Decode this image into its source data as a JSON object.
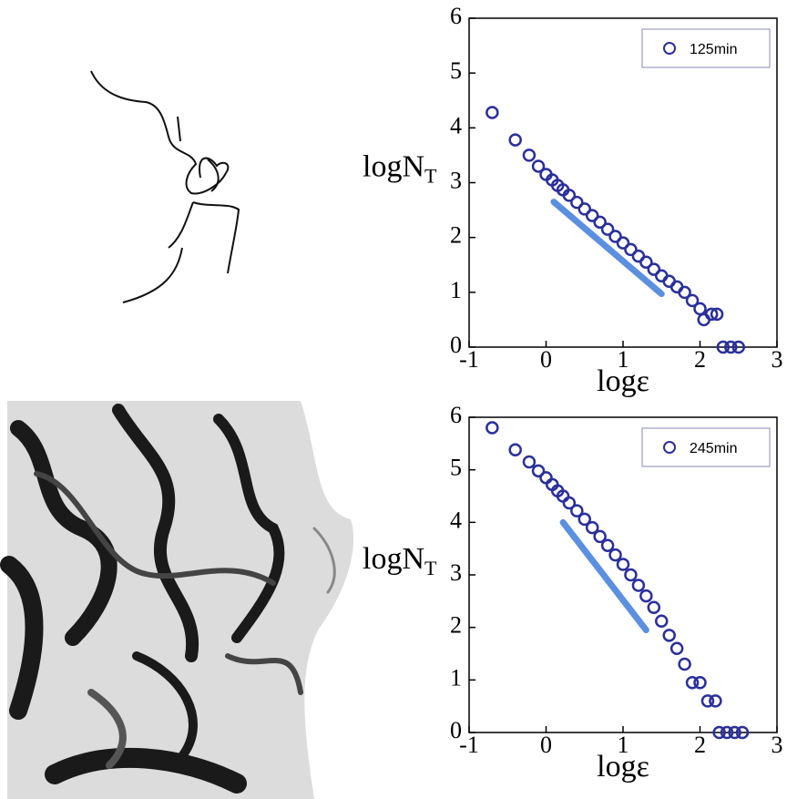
{
  "chart_data": [
    {
      "type": "scatter",
      "xlabel": "logε",
      "ylabel": {
        "text": "logN",
        "subscript": "T"
      },
      "xlim": [
        -1,
        3
      ],
      "ylim": [
        0,
        6
      ],
      "xticks": [
        -1,
        0,
        1,
        2,
        3
      ],
      "yticks": [
        0,
        1,
        2,
        3,
        4,
        5,
        6
      ],
      "legend": "upper right",
      "series": [
        {
          "name": "125min",
          "color": "#2a2f9c",
          "x": [
            -0.7,
            -0.4,
            -0.22,
            -0.1,
            0,
            0.08,
            0.15,
            0.22,
            0.3,
            0.4,
            0.5,
            0.6,
            0.7,
            0.8,
            0.9,
            1.0,
            1.1,
            1.2,
            1.3,
            1.4,
            1.5,
            1.6,
            1.7,
            1.8,
            1.9,
            2.0,
            2.05,
            2.15,
            2.22,
            2.3,
            2.4,
            2.5
          ],
          "values": [
            4.28,
            3.78,
            3.5,
            3.3,
            3.15,
            3.05,
            2.95,
            2.87,
            2.77,
            2.64,
            2.52,
            2.4,
            2.28,
            2.15,
            2.02,
            1.9,
            1.78,
            1.66,
            1.55,
            1.42,
            1.3,
            1.2,
            1.1,
            1.0,
            0.85,
            0.7,
            0.5,
            0.6,
            0.6,
            0,
            0,
            0
          ]
        }
      ],
      "reference_line": {
        "color": "#5b8fe0",
        "x": [
          0.1,
          1.5
        ],
        "values": [
          2.65,
          0.97
        ]
      }
    },
    {
      "type": "scatter",
      "xlabel": "logε",
      "ylabel": {
        "text": "logN",
        "subscript": "T"
      },
      "xlim": [
        -1,
        3
      ],
      "ylim": [
        0,
        6
      ],
      "xticks": [
        -1,
        0,
        1,
        2,
        3
      ],
      "yticks": [
        0,
        1,
        2,
        3,
        4,
        5,
        6
      ],
      "legend": "upper right",
      "series": [
        {
          "name": "245min",
          "color": "#2a2f9c",
          "x": [
            -0.7,
            -0.4,
            -0.22,
            -0.1,
            0,
            0.08,
            0.15,
            0.22,
            0.3,
            0.4,
            0.5,
            0.6,
            0.7,
            0.8,
            0.9,
            1.0,
            1.1,
            1.2,
            1.3,
            1.4,
            1.5,
            1.6,
            1.7,
            1.8,
            1.9,
            2.0,
            2.1,
            2.2,
            2.25,
            2.35,
            2.45,
            2.55
          ],
          "values": [
            5.8,
            5.38,
            5.15,
            4.98,
            4.85,
            4.72,
            4.6,
            4.5,
            4.37,
            4.22,
            4.06,
            3.9,
            3.73,
            3.56,
            3.38,
            3.2,
            3.0,
            2.8,
            2.6,
            2.38,
            2.12,
            1.85,
            1.6,
            1.3,
            0.95,
            0.95,
            0.6,
            0.6,
            0,
            0,
            0,
            0
          ]
        }
      ],
      "reference_line": {
        "color": "#5b8fe0",
        "x": [
          0.22,
          1.3
        ],
        "values": [
          4.0,
          1.95
        ]
      }
    }
  ]
}
